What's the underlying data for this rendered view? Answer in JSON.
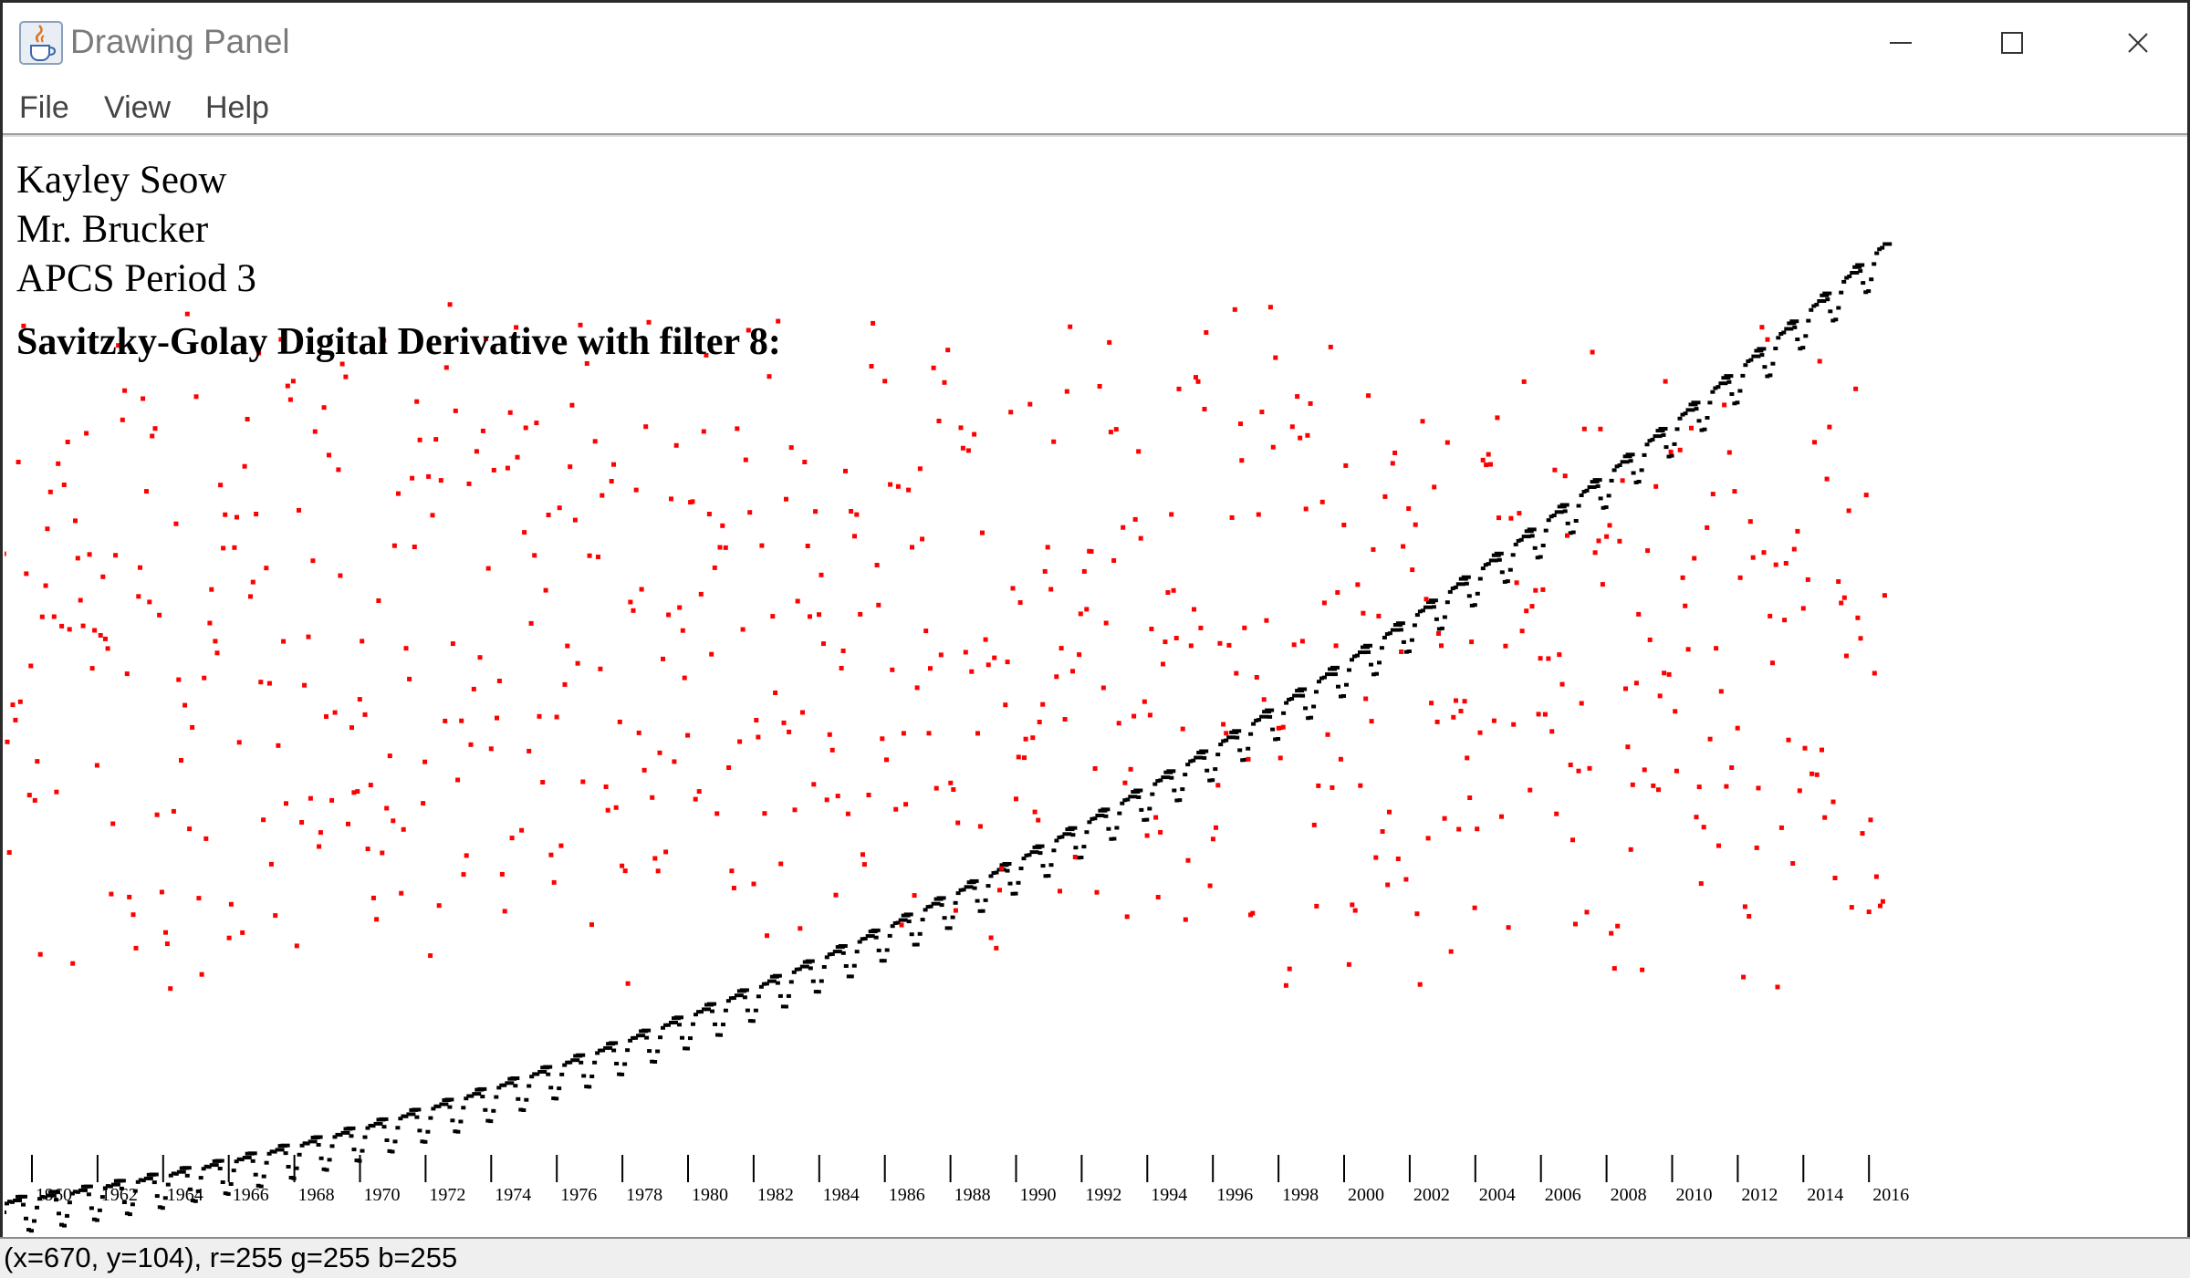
{
  "window": {
    "title": "Drawing Panel",
    "icon": "java-coffee-cup-icon",
    "controls": [
      "minimize-icon",
      "maximize-icon",
      "close-icon"
    ]
  },
  "menu": {
    "items": [
      "File",
      "View",
      "Help"
    ]
  },
  "header": {
    "line1": "Kayley Seow",
    "line2": "Mr. Brucker",
    "line3": "APCS Period 3",
    "title": "Savitzky-Golay Digital Derivative with filter 8:"
  },
  "status": {
    "text": "(x=670, y=104), r=255 g=255 b=255"
  },
  "chart_data": {
    "type": "scatter",
    "x_tick_labels": [
      "1960",
      "1962",
      "1964",
      "1966",
      "1968",
      "1970",
      "1972",
      "1974",
      "1976",
      "1978",
      "1980",
      "1982",
      "1984",
      "1986",
      "1988",
      "1990",
      "1992",
      "1994",
      "1996",
      "1998",
      "2000",
      "2002",
      "2004",
      "2006",
      "2008",
      "2010",
      "2012",
      "2014",
      "2016"
    ],
    "xlim": [
      1959,
      2017
    ],
    "series": [
      {
        "color": "#000000",
        "description_start_end": [
          1959.0,
          2016.4
        ],
        "trend": "rising with seasonal oscillation"
      },
      {
        "color": "#ff0000",
        "description_start_end": [
          1959.0,
          2016.4
        ],
        "trend": "scattered derivative points"
      }
    ],
    "grid": false,
    "legend": "none"
  }
}
